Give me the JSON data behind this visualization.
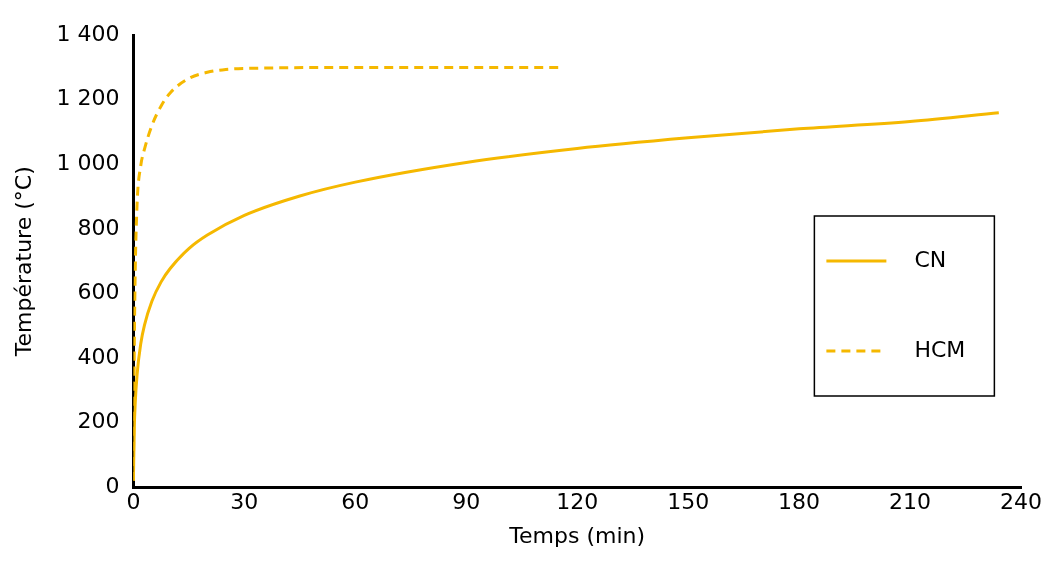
{
  "chart_data": {
    "type": "line",
    "xlabel": "Temps (min)",
    "ylabel": "Température (°C)",
    "xlim": [
      0,
      240
    ],
    "xticks": [
      0,
      30,
      60,
      90,
      120,
      150,
      180,
      210,
      240
    ],
    "ylim": [
      0,
      1400
    ],
    "yticks": [
      0,
      200,
      400,
      600,
      800,
      {
        "value": 1000,
        "label": "1 000"
      },
      {
        "value": 1200,
        "label": "1 200"
      },
      {
        "value": 1400,
        "label": "1 400"
      }
    ],
    "grid": false,
    "legend": "right",
    "marker": "none",
    "series": [
      {
        "name": "CN",
        "color": "#f5b800",
        "line_style": "solid",
        "x": [
          0,
          0.25,
          0.5,
          1,
          2,
          3,
          5,
          7.5,
          10,
          15,
          20,
          30,
          45,
          60,
          90,
          120,
          150,
          180,
          210,
          234
        ],
        "values": [
          20,
          185,
          261,
          349,
          445,
          502,
          576,
          636,
          678,
          739,
          781,
          842,
          902,
          945,
          1006,
          1049,
          1082,
          1110,
          1133,
          1160
        ]
      },
      {
        "name": "HCM",
        "color": "#f5b800",
        "line_style": "dashed",
        "x": [
          0,
          0.25,
          0.5,
          1,
          2,
          3,
          5,
          7.5,
          10,
          15,
          20,
          25,
          30,
          60,
          115
        ],
        "values": [
          20,
          439,
          670,
          877,
          996,
          1047,
          1120,
          1181,
          1222,
          1266,
          1285,
          1294,
          1297,
          1300,
          1300
        ]
      }
    ]
  }
}
